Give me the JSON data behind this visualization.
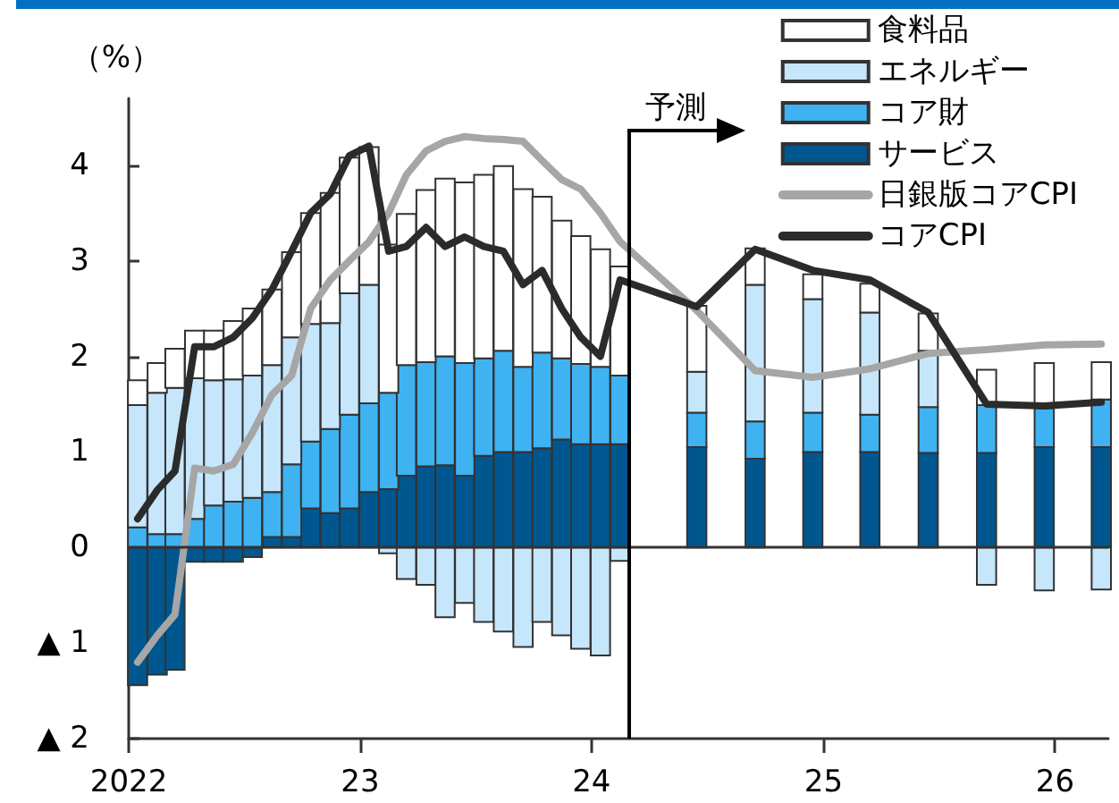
{
  "chart_data": {
    "type": "bar",
    "stacked": true,
    "ylabel": "（%）",
    "x": [
      "2022-01-15",
      "2022-02-15",
      "2022-03-15",
      "2022-04-15",
      "2022-05-15",
      "2022-06-15",
      "2022-07-15",
      "2022-08-15",
      "2022-09-15",
      "2022-10-15",
      "2022-11-15",
      "2022-12-15",
      "2023-01-15",
      "2023-02-15",
      "2023-03-15",
      "2023-04-15",
      "2023-05-15",
      "2023-06-15",
      "2023-07-15",
      "2023-08-15",
      "2023-09-15",
      "2023-10-15",
      "2023-11-15",
      "2023-12-15",
      "2024-01-15",
      "2024-02-15",
      "2024-06-15",
      "2024-09-15",
      "2024-12-15",
      "2025-03-15",
      "2025-06-15",
      "2025-09-15",
      "2025-12-15",
      "2026-03-15"
    ],
    "series": [
      {
        "name": "サービス",
        "color": "#00578f",
        "values": [
          -1.44,
          -1.33,
          -1.28,
          -0.15,
          -0.15,
          -0.15,
          -0.1,
          0.11,
          0.11,
          0.41,
          0.36,
          0.41,
          0.58,
          0.61,
          0.75,
          0.85,
          0.86,
          0.75,
          0.96,
          1.0,
          1.0,
          1.04,
          1.13,
          1.08,
          1.08,
          1.08,
          1.05,
          0.93,
          1.0,
          1.0,
          0.99,
          0.99,
          1.05,
          1.05
        ]
      },
      {
        "name": "コア財",
        "color": "#3fb2f2",
        "values": [
          0.21,
          0.14,
          0.14,
          0.3,
          0.44,
          0.48,
          0.52,
          0.47,
          0.76,
          0.7,
          0.88,
          0.98,
          0.93,
          1.01,
          1.16,
          1.09,
          1.14,
          1.18,
          1.02,
          1.06,
          0.89,
          1.0,
          0.85,
          0.84,
          0.81,
          0.72,
          0.36,
          0.39,
          0.41,
          0.39,
          0.48,
          0.5,
          0.41,
          0.5
        ]
      },
      {
        "name": "エネルギー",
        "color": "#c6e6fb",
        "values": [
          1.28,
          1.48,
          1.53,
          1.47,
          1.31,
          1.28,
          1.28,
          1.33,
          1.33,
          1.23,
          1.11,
          1.27,
          1.24,
          -0.06,
          -0.33,
          -0.39,
          -0.73,
          -0.58,
          -0.78,
          -0.88,
          -1.04,
          -0.78,
          -0.92,
          -1.06,
          -1.13,
          -0.14,
          0.43,
          1.43,
          1.19,
          1.07,
          0.59,
          -0.39,
          -0.45,
          -0.44
        ]
      },
      {
        "name": "食料品",
        "color": "#ffffff",
        "values": [
          0.26,
          0.31,
          0.41,
          0.5,
          0.52,
          0.61,
          0.7,
          0.79,
          0.89,
          1.16,
          1.36,
          1.42,
          1.44,
          1.55,
          1.58,
          1.8,
          1.86,
          1.89,
          1.92,
          1.93,
          1.86,
          1.63,
          1.44,
          1.34,
          1.23,
          1.14,
          0.69,
          0.38,
          0.26,
          0.3,
          0.39,
          0.37,
          0.47,
          0.39
        ]
      },
      {
        "name": "日銀版コアCPI",
        "type": "line",
        "color": "#a6a6a6",
        "values": [
          -1.2,
          -0.92,
          -0.7,
          0.83,
          0.8,
          0.87,
          1.2,
          1.6,
          1.8,
          2.5,
          2.8,
          3.0,
          3.2,
          3.5,
          3.9,
          4.15,
          4.25,
          4.3,
          4.28,
          4.27,
          4.25,
          4.05,
          3.85,
          3.75,
          3.5,
          3.2,
          2.48,
          1.85,
          1.78,
          1.87,
          2.03,
          2.07,
          2.12,
          2.13
        ]
      },
      {
        "name": "コアCPI",
        "type": "line",
        "color": "#2b2b2b",
        "values": [
          0.3,
          0.6,
          0.8,
          2.1,
          2.1,
          2.2,
          2.4,
          2.7,
          3.1,
          3.5,
          3.7,
          4.1,
          4.2,
          3.1,
          3.15,
          3.35,
          3.15,
          3.25,
          3.15,
          3.1,
          2.75,
          2.9,
          2.5,
          2.2,
          2.0,
          2.8,
          2.52,
          3.12,
          2.9,
          2.8,
          2.46,
          1.5,
          1.48,
          1.52
        ]
      }
    ],
    "xlim": [
      "2022-01-01",
      "2026-03-26"
    ],
    "xticks": [
      {
        "value": "2022-01-01",
        "label": "2022"
      },
      {
        "value": "2023-01-01",
        "label": "23"
      },
      {
        "value": "2024-01-01",
        "label": "24"
      },
      {
        "value": "2025-01-01",
        "label": "25"
      },
      {
        "value": "2026-01-01",
        "label": "26"
      }
    ],
    "ylim": [
      -2,
      4.7
    ],
    "yticks": [
      {
        "value": -2,
        "label": "▲ 2"
      },
      {
        "value": -1,
        "label": "▲ 1"
      },
      0,
      1,
      2,
      3,
      4
    ],
    "ref_lines": [
      {
        "axis": "y",
        "value": 0
      },
      {
        "axis": "x",
        "value": "2024-03-01",
        "label": "予測"
      }
    ],
    "legend": "top right"
  }
}
